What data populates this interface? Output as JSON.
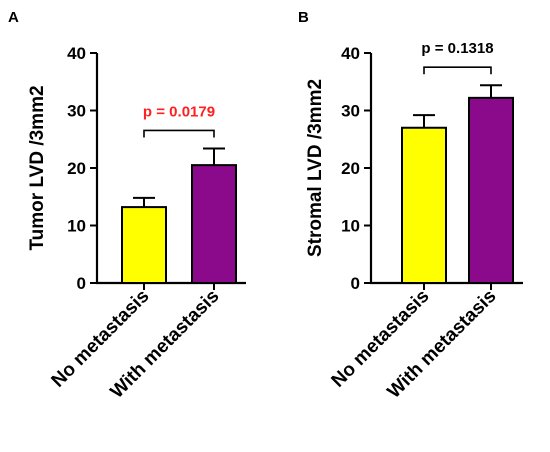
{
  "chart_data": [
    {
      "type": "bar",
      "panel_label": "A",
      "ylabel": "Tumor LVD /3mm2",
      "ylim": [
        0,
        40
      ],
      "yticks": [
        "0",
        "10",
        "20",
        "30",
        "40"
      ],
      "categories": [
        "No metastasis",
        "With metastasis"
      ],
      "values": [
        13.2,
        20.5
      ],
      "errors": [
        1.6,
        2.9
      ],
      "bar_colors": [
        "#ffff00",
        "#8b0a8b"
      ],
      "annotation": {
        "text": "p = 0.0179",
        "color": "#ff2020"
      },
      "grid": false
    },
    {
      "type": "bar",
      "panel_label": "B",
      "ylabel": "Stromal LVD /3mm2",
      "ylim": [
        0,
        40
      ],
      "yticks": [
        "0",
        "10",
        "20",
        "30",
        "40"
      ],
      "categories": [
        "No metastasis",
        "With metastasis"
      ],
      "values": [
        27.0,
        32.2
      ],
      "errors": [
        2.2,
        2.2
      ],
      "bar_colors": [
        "#ffff00",
        "#8b0a8b"
      ],
      "annotation": {
        "text": "p = 0.1318",
        "color": "#000000"
      },
      "grid": false
    }
  ]
}
